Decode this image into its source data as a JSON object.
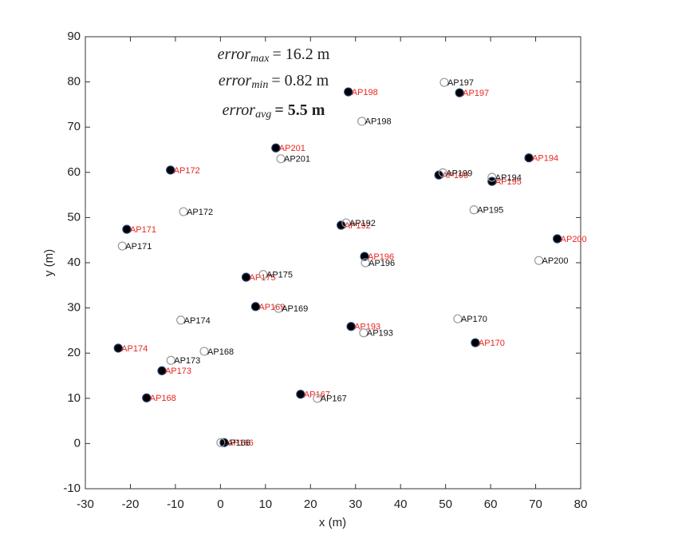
{
  "chart_data": {
    "type": "scatter",
    "xlabel": "x (m)",
    "ylabel": "y (m)",
    "xlim": [
      -30,
      80
    ],
    "ylim": [
      -10,
      90
    ],
    "xticks": [
      -30,
      -20,
      -10,
      0,
      10,
      20,
      30,
      40,
      50,
      60,
      70,
      80
    ],
    "yticks": [
      -10,
      0,
      10,
      20,
      30,
      40,
      50,
      60,
      70,
      80,
      90
    ],
    "annotations": [
      {
        "name": "error",
        "sub": "max",
        "text": "= 16.2 m",
        "bold": false
      },
      {
        "name": "error",
        "sub": "min",
        "text": "= 0.82 m",
        "bold": false
      },
      {
        "name": "error",
        "sub": "avg",
        "text": "= 5.5 m",
        "bold": true
      }
    ],
    "series": [
      {
        "color": "#000000",
        "edge": "#1f3a6e",
        "filled": true,
        "label_color": "#e8251f",
        "labels": [
          "AP198",
          "AP197",
          "AP201",
          "AP172",
          "AP194",
          "AP199",
          "AP195",
          "AP171",
          "AP192",
          "AP200",
          "AP196",
          "AP175",
          "AP169",
          "AP193",
          "AP170",
          "AP174",
          "AP173",
          "AP168",
          "AP167",
          "AP166"
        ],
        "x": [
          28.4,
          53.1,
          12.3,
          -11.1,
          68.5,
          48.5,
          60.3,
          -20.8,
          26.8,
          74.8,
          32.0,
          5.7,
          7.8,
          29.0,
          56.6,
          -22.7,
          -13.0,
          -16.4,
          17.8,
          0.8
        ],
        "values": [
          77.8,
          77.6,
          65.4,
          60.5,
          63.2,
          59.4,
          58.0,
          47.4,
          48.3,
          45.3,
          41.4,
          36.8,
          30.3,
          25.9,
          22.3,
          21.1,
          16.1,
          10.1,
          10.9,
          0.2
        ]
      },
      {
        "color": "#ffffff",
        "edge": "#999999",
        "filled": false,
        "label_color": "#111111",
        "labels": [
          "AP197",
          "AP198",
          "AP201",
          "AP199",
          "AP194",
          "AP195",
          "AP172",
          "AP192",
          "AP171",
          "AP196",
          "AP200",
          "AP175",
          "AP169",
          "AP174",
          "AP193",
          "AP170",
          "AP168",
          "AP173",
          "AP167",
          "AP166"
        ],
        "x": [
          49.7,
          31.4,
          13.4,
          49.4,
          60.3,
          56.3,
          -8.2,
          27.9,
          -21.8,
          32.2,
          70.7,
          9.5,
          12.9,
          -8.8,
          31.8,
          52.7,
          -3.6,
          -11.0,
          21.5,
          0.1
        ],
        "values": [
          79.9,
          71.3,
          63.0,
          59.9,
          58.9,
          51.7,
          51.3,
          48.8,
          43.7,
          40.0,
          40.5,
          37.4,
          29.9,
          27.3,
          24.5,
          27.6,
          20.4,
          18.4,
          10.0,
          0.2
        ]
      }
    ]
  }
}
